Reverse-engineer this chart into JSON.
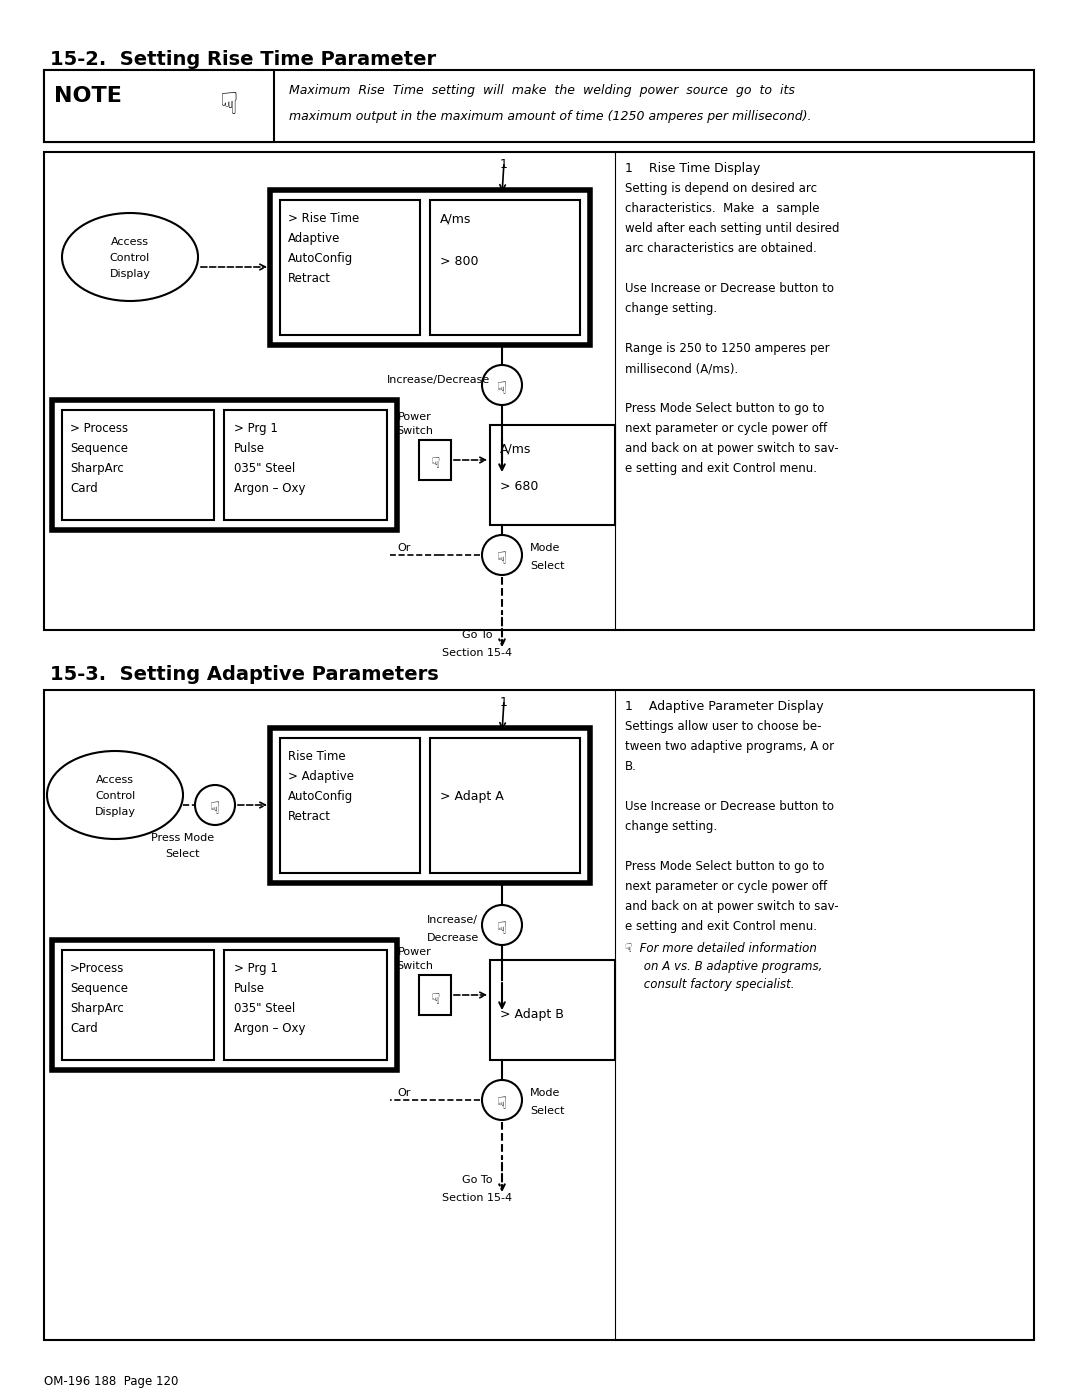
{
  "title1": "15-2.  Setting Rise Time Parameter",
  "title2": "15-3.  Setting Adaptive Parameters",
  "note_line1": "Maximum  Rise  Time  setting  will  make  the  welding  power  source  go  to  its",
  "note_line2": "maximum output in the maximum amount of time (1250 amperes per millisecond).",
  "footer": "OM-196 188  Page 120",
  "bg_color": "#ffffff"
}
